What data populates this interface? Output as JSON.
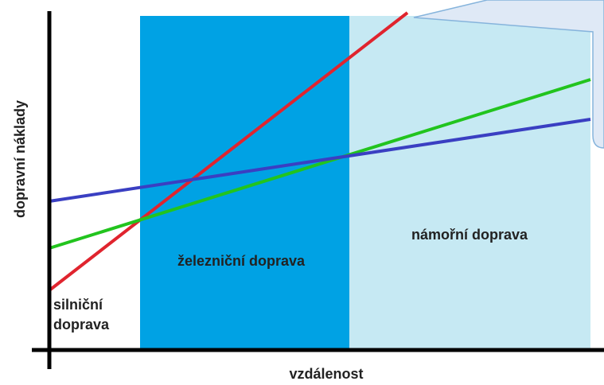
{
  "y_axis_label": "dopravní náklady",
  "x_axis_label": "vzdálenost",
  "zones": [
    {
      "label_lines": [
        "silniční",
        "doprava"
      ]
    },
    {
      "label": "železniční doprava"
    },
    {
      "label": "námořní doprava"
    }
  ]
}
